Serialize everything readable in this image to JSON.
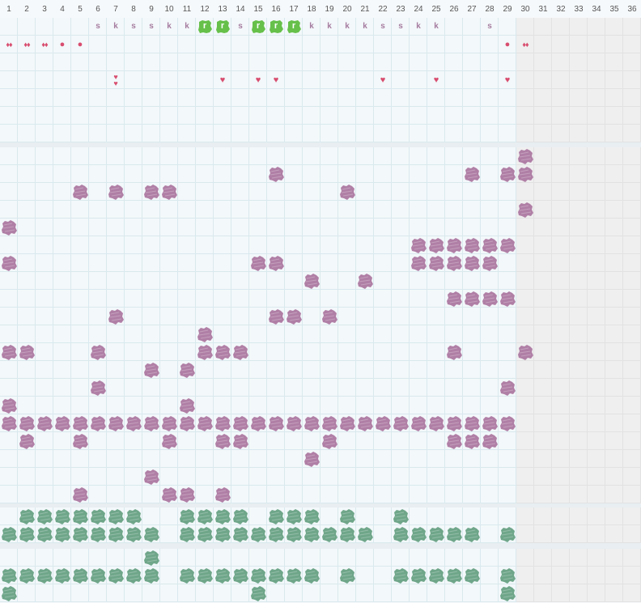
{
  "days": [
    "1",
    "2",
    "3",
    "4",
    "5",
    "6",
    "7",
    "8",
    "9",
    "10",
    "11",
    "12",
    "13",
    "14",
    "15",
    "16",
    "17",
    "18",
    "19",
    "20",
    "21",
    "22",
    "23",
    "24",
    "25",
    "26",
    "27",
    "28",
    "29",
    "30",
    "31",
    "32",
    "33",
    "34",
    "35",
    "36"
  ],
  "active_days": 29,
  "colors": {
    "purple": "#b07fa6",
    "green": "#6fa68a",
    "lime": "#66c04a",
    "red": "#d84d6f",
    "code": "#a57b9f"
  },
  "codes": [
    {
      "day": 6,
      "text": "s"
    },
    {
      "day": 7,
      "text": "k"
    },
    {
      "day": 8,
      "text": "s"
    },
    {
      "day": 9,
      "text": "s"
    },
    {
      "day": 10,
      "text": "k"
    },
    {
      "day": 11,
      "text": "k"
    },
    {
      "day": 14,
      "text": "s"
    },
    {
      "day": 18,
      "text": "k"
    },
    {
      "day": 19,
      "text": "k"
    },
    {
      "day": 20,
      "text": "k"
    },
    {
      "day": 21,
      "text": "k"
    },
    {
      "day": 22,
      "text": "s"
    },
    {
      "day": 23,
      "text": "s"
    },
    {
      "day": 24,
      "text": "k"
    },
    {
      "day": 25,
      "text": "k"
    },
    {
      "day": 28,
      "text": "s"
    }
  ],
  "badges": [
    {
      "day": 12,
      "text": "r"
    },
    {
      "day": 13,
      "text": "r"
    },
    {
      "day": 15,
      "text": "r"
    },
    {
      "day": 16,
      "text": "r"
    },
    {
      "day": 17,
      "text": "r"
    }
  ],
  "marks_row1": [
    {
      "day": 1,
      "icon": "double-drop-icon",
      "glyph": "♦♦"
    },
    {
      "day": 2,
      "icon": "double-drop-icon",
      "glyph": "♦♦"
    },
    {
      "day": 3,
      "icon": "double-drop-icon",
      "glyph": "♦♦"
    },
    {
      "day": 4,
      "icon": "dot-icon",
      "glyph": "●"
    },
    {
      "day": 5,
      "icon": "dot-icon",
      "glyph": "●"
    },
    {
      "day": 29,
      "icon": "dot-icon",
      "glyph": "●"
    },
    {
      "day": 30,
      "icon": "double-drop-icon",
      "glyph": "♦♦"
    }
  ],
  "marks_row3": [
    {
      "day": 7,
      "icon": "double-heart-icon",
      "glyph": "♥"
    },
    {
      "day": 13,
      "icon": "heart-icon",
      "glyph": "♥"
    },
    {
      "day": 15,
      "icon": "heart-icon",
      "glyph": "♥"
    },
    {
      "day": 16,
      "icon": "heart-icon",
      "glyph": "♥"
    },
    {
      "day": 22,
      "icon": "heart-icon",
      "glyph": "♥"
    },
    {
      "day": 25,
      "icon": "heart-icon",
      "glyph": "♥"
    },
    {
      "day": 29,
      "icon": "heart-icon",
      "glyph": "♥"
    }
  ],
  "purple_rows": [
    [
      30
    ],
    [
      16,
      27,
      29,
      30
    ],
    [
      5,
      7,
      9,
      10,
      20
    ],
    [
      30
    ],
    [
      1
    ],
    [
      24,
      25,
      26,
      27,
      28,
      29
    ],
    [
      1,
      15,
      16,
      24,
      25,
      26,
      27,
      28
    ],
    [
      18,
      21
    ],
    [
      26,
      27,
      28,
      29
    ],
    [
      7,
      16,
      17,
      19
    ],
    [
      12
    ],
    [
      1,
      2,
      6,
      12,
      13,
      14,
      26,
      30
    ],
    [
      9,
      11
    ],
    [
      6,
      29
    ],
    [
      1,
      11
    ],
    [
      1,
      2,
      3,
      4,
      5,
      6,
      7,
      8,
      9,
      10,
      11,
      12,
      13,
      14,
      15,
      16,
      17,
      18,
      19,
      20,
      21,
      22,
      23,
      24,
      25,
      26,
      27,
      28,
      29
    ],
    [
      2,
      5,
      10,
      13,
      14,
      19,
      26,
      27,
      28
    ],
    [
      18
    ],
    [
      9
    ],
    [
      5,
      10,
      11,
      13
    ]
  ],
  "green_rows_a": [
    [
      2,
      3,
      4,
      5,
      6,
      7,
      8,
      11,
      12,
      13,
      14,
      16,
      17,
      18,
      20,
      23
    ],
    [
      1,
      2,
      3,
      4,
      5,
      6,
      7,
      8,
      9,
      11,
      12,
      13,
      14,
      15,
      16,
      17,
      18,
      19,
      20,
      21,
      23,
      24,
      25,
      26,
      27,
      29
    ]
  ],
  "green_rows_b": [
    [
      9
    ],
    [
      1,
      2,
      3,
      4,
      5,
      6,
      7,
      8,
      9,
      11,
      12,
      13,
      14,
      15,
      16,
      17,
      18,
      20,
      23,
      24,
      25,
      26,
      27,
      29
    ],
    [
      1,
      15,
      29
    ]
  ]
}
